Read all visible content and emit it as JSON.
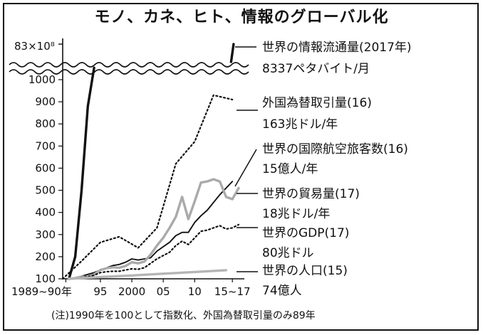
{
  "chart_data": {
    "type": "line",
    "title": "モノ、カネ、ヒト、情報のグローバル化",
    "note": "(注)1990年を100として指数化、外国為替取引量のみ89年",
    "y_top_label": "83×10⁸",
    "ylim": [
      100,
      1000
    ],
    "yticks": [
      "100",
      "200",
      "300",
      "400",
      "500",
      "600",
      "700",
      "800",
      "900",
      "1000"
    ],
    "xticks": [
      "1989~90年",
      "95",
      "2000",
      "05",
      "10",
      "15~17"
    ],
    "x_range": [
      1989,
      2017
    ],
    "series": [
      {
        "name": "世界の情報流通量",
        "label_line1": "世界の情報流通量(2017年)",
        "label_line2": "8337ペタバイト/月",
        "style": "solid-thick",
        "color": "#111111",
        "points": [
          [
            1990,
            100
          ],
          [
            1991,
            200
          ],
          [
            1992,
            500
          ],
          [
            1993,
            880
          ],
          [
            1994,
            1100
          ]
        ],
        "top_segment": [
          [
            2015.8,
            1150
          ],
          [
            2016.2,
            1300
          ]
        ]
      },
      {
        "name": "外国為替取引量",
        "label_line1": "外国為替取引量(16)",
        "label_line2": "163兆ドル/年",
        "style": "dotted",
        "color": "#111111",
        "points": [
          [
            1989,
            100
          ],
          [
            1992,
            180
          ],
          [
            1995,
            265
          ],
          [
            1998,
            290
          ],
          [
            2001,
            240
          ],
          [
            2004,
            330
          ],
          [
            2007,
            620
          ],
          [
            2010,
            720
          ],
          [
            2013,
            930
          ],
          [
            2016,
            910
          ]
        ]
      },
      {
        "name": "世界の国際航空旅客数",
        "label_line1": "世界の国際航空旅客数(16)",
        "label_line2": "15億人/年",
        "style": "solid",
        "color": "#111111",
        "points": [
          [
            1990,
            100
          ],
          [
            1991,
            105
          ],
          [
            1992,
            112
          ],
          [
            1993,
            120
          ],
          [
            1994,
            128
          ],
          [
            1995,
            140
          ],
          [
            1996,
            150
          ],
          [
            1997,
            160
          ],
          [
            1998,
            165
          ],
          [
            1999,
            175
          ],
          [
            2000,
            190
          ],
          [
            2001,
            185
          ],
          [
            2002,
            190
          ],
          [
            2003,
            195
          ],
          [
            2004,
            225
          ],
          [
            2005,
            245
          ],
          [
            2006,
            265
          ],
          [
            2007,
            295
          ],
          [
            2008,
            310
          ],
          [
            2009,
            310
          ],
          [
            2010,
            355
          ],
          [
            2011,
            385
          ],
          [
            2012,
            410
          ],
          [
            2013,
            445
          ],
          [
            2014,
            480
          ],
          [
            2015,
            510
          ],
          [
            2016,
            540
          ]
        ]
      },
      {
        "name": "世界の貿易量",
        "label_line1": "世界の貿易量(17)",
        "label_line2": "18兆ドル/年",
        "style": "solid-thick",
        "color": "#aaaaaa",
        "points": [
          [
            1990,
            100
          ],
          [
            1991,
            103
          ],
          [
            1992,
            110
          ],
          [
            1993,
            108
          ],
          [
            1994,
            120
          ],
          [
            1995,
            140
          ],
          [
            1996,
            148
          ],
          [
            1997,
            152
          ],
          [
            1998,
            150
          ],
          [
            1999,
            158
          ],
          [
            2000,
            175
          ],
          [
            2001,
            170
          ],
          [
            2002,
            178
          ],
          [
            2003,
            210
          ],
          [
            2004,
            250
          ],
          [
            2005,
            285
          ],
          [
            2006,
            330
          ],
          [
            2007,
            380
          ],
          [
            2008,
            470
          ],
          [
            2009,
            370
          ],
          [
            2010,
            450
          ],
          [
            2011,
            535
          ],
          [
            2012,
            540
          ],
          [
            2013,
            550
          ],
          [
            2014,
            540
          ],
          [
            2015,
            470
          ],
          [
            2016,
            460
          ],
          [
            2017,
            510
          ]
        ]
      },
      {
        "name": "世界のGDP",
        "label_line1": "世界のGDP(17)",
        "label_line2": "80兆ドル",
        "style": "dotted",
        "color": "#111111",
        "points": [
          [
            1990,
            100
          ],
          [
            1991,
            103
          ],
          [
            1992,
            106
          ],
          [
            1993,
            110
          ],
          [
            1994,
            116
          ],
          [
            1995,
            128
          ],
          [
            1996,
            132
          ],
          [
            1997,
            134
          ],
          [
            1998,
            134
          ],
          [
            1999,
            140
          ],
          [
            2000,
            145
          ],
          [
            2001,
            143
          ],
          [
            2002,
            150
          ],
          [
            2003,
            170
          ],
          [
            2004,
            190
          ],
          [
            2005,
            205
          ],
          [
            2006,
            220
          ],
          [
            2007,
            250
          ],
          [
            2008,
            270
          ],
          [
            2009,
            255
          ],
          [
            2010,
            285
          ],
          [
            2011,
            315
          ],
          [
            2012,
            320
          ],
          [
            2013,
            330
          ],
          [
            2014,
            340
          ],
          [
            2015,
            325
          ],
          [
            2016,
            330
          ],
          [
            2017,
            345
          ]
        ]
      },
      {
        "name": "世界の人口",
        "label_line1": "世界の人口(15)",
        "label_line2": "74億人",
        "style": "solid-thick",
        "color": "#b5b5b5",
        "points": [
          [
            1990,
            100
          ],
          [
            1995,
            108
          ],
          [
            2000,
            115
          ],
          [
            2005,
            123
          ],
          [
            2010,
            131
          ],
          [
            2015,
            139
          ]
        ]
      }
    ]
  }
}
